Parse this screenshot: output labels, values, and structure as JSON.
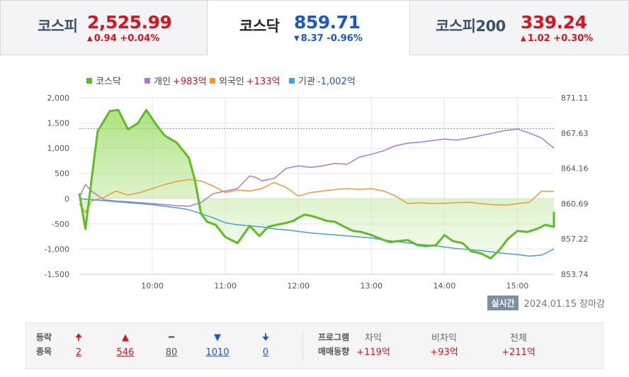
{
  "tabs": [
    {
      "name": "코스피",
      "value": "2,525.99",
      "change": "0.94 +0.04%",
      "dir": "up",
      "active": false
    },
    {
      "name": "코스닥",
      "value": "859.71",
      "change": "8.37 -0.96%",
      "dir": "down",
      "active": true
    },
    {
      "name": "코스피200",
      "value": "339.24",
      "change": "1.02 +0.30%",
      "dir": "up",
      "active": false
    }
  ],
  "legend": [
    {
      "name": "코스닥",
      "amount": "",
      "color": "#5cbf1d"
    },
    {
      "name": "개인",
      "amount": "+983억",
      "color": "#a779d8"
    },
    {
      "name": "외국인",
      "amount": "+133억",
      "color": "#f5962f"
    },
    {
      "name": "기관",
      "amount": "-1,002억",
      "color": "#3ea0e8"
    }
  ],
  "status": {
    "badge": "실시간",
    "date": "2024.01.15 장마감"
  },
  "breadth": {
    "label1": "등락",
    "label2": "종목",
    "items": [
      {
        "icon": "🠉",
        "value": "2",
        "color": "#e0111a",
        "name": "upper-limit"
      },
      {
        "icon": "▲",
        "value": "546",
        "color": "#e0111a",
        "name": "rise"
      },
      {
        "icon": "━",
        "value": "80",
        "color": "#555555",
        "name": "unchanged"
      },
      {
        "icon": "▼",
        "value": "1010",
        "color": "#1a55d6",
        "name": "fall"
      },
      {
        "icon": "🠋",
        "value": "0",
        "color": "#1a55d6",
        "name": "lower-limit"
      }
    ]
  },
  "program": {
    "label1": "프로그램",
    "label2": "매매동향",
    "items": [
      {
        "header": "차익",
        "value": "+119억"
      },
      {
        "header": "비차익",
        "value": "+93억"
      },
      {
        "header": "전체",
        "value": "+211억"
      }
    ]
  },
  "chart_data": {
    "type": "line",
    "x_ticks": [
      "10:00",
      "11:00",
      "12:00",
      "13:00",
      "14:00",
      "15:00"
    ],
    "x_range": [
      "09:00",
      "15:30"
    ],
    "y_left": {
      "ticks": [
        "2,000",
        "1,500",
        "1,000",
        "500",
        "0",
        "-500",
        "-1,000",
        "-1,500"
      ],
      "range": [
        -1500,
        2000
      ]
    },
    "y_right": {
      "ticks": [
        "871.11",
        "867.63",
        "864.16",
        "860.69",
        "857.22",
        "853.74"
      ],
      "range": [
        853.74,
        871.11
      ]
    },
    "reference_line": 868.08,
    "series": [
      {
        "name": "코스닥",
        "axis": "right",
        "color": "#5cbf1d",
        "x": [
          0,
          5,
          15,
          25,
          32,
          40,
          48,
          55,
          63,
          70,
          80,
          90,
          95,
          100,
          105,
          112,
          120,
          130,
          140,
          148,
          155,
          162,
          170,
          176,
          180,
          185,
          190,
          196,
          203,
          210,
          218,
          225,
          232,
          240,
          248,
          255,
          262,
          270,
          278,
          285,
          293,
          300,
          307,
          315,
          322,
          330,
          338,
          345,
          352,
          360,
          368,
          376,
          383,
          390,
          390
        ],
        "y": [
          861.7,
          858.2,
          867.8,
          869.8,
          869.9,
          868.0,
          868.6,
          869.9,
          868.5,
          867.4,
          866.7,
          865.2,
          863.0,
          859.7,
          858.9,
          858.6,
          857.4,
          856.8,
          858.5,
          857.5,
          858.4,
          858.6,
          858.8,
          859.0,
          859.3,
          859.6,
          859.5,
          859.3,
          859.0,
          858.9,
          858.4,
          858.0,
          857.9,
          857.6,
          857.2,
          856.9,
          857.0,
          857.1,
          856.6,
          856.5,
          856.6,
          857.6,
          857.0,
          856.8,
          856.0,
          855.8,
          855.3,
          856.1,
          857.2,
          858.0,
          857.9,
          858.2,
          858.6,
          858.4,
          859.9
        ]
      },
      {
        "name": "개인",
        "axis": "left",
        "color": "#a779d8",
        "x": [
          0,
          5,
          10,
          20,
          30,
          40,
          50,
          60,
          70,
          80,
          90,
          100,
          110,
          120,
          130,
          140,
          145,
          150,
          160,
          170,
          180,
          190,
          200,
          210,
          220,
          230,
          240,
          250,
          260,
          270,
          280,
          290,
          300,
          310,
          320,
          330,
          340,
          350,
          360,
          370,
          380,
          390
        ],
        "y": [
          30,
          280,
          150,
          -20,
          -50,
          -60,
          -80,
          -100,
          -120,
          -140,
          -150,
          -80,
          100,
          150,
          200,
          450,
          420,
          350,
          400,
          600,
          650,
          620,
          650,
          700,
          680,
          820,
          880,
          950,
          1050,
          1100,
          1120,
          1150,
          1180,
          1160,
          1200,
          1250,
          1300,
          1350,
          1380,
          1300,
          1200,
          1000
        ]
      },
      {
        "name": "외국인",
        "axis": "left",
        "color": "#f5962f",
        "x": [
          0,
          5,
          10,
          20,
          30,
          40,
          50,
          60,
          70,
          80,
          90,
          100,
          110,
          120,
          130,
          140,
          150,
          160,
          170,
          180,
          190,
          200,
          210,
          220,
          230,
          240,
          250,
          260,
          270,
          280,
          290,
          300,
          310,
          320,
          330,
          340,
          350,
          360,
          370,
          380,
          390
        ],
        "y": [
          -100,
          -280,
          -50,
          20,
          150,
          70,
          120,
          200,
          280,
          340,
          380,
          350,
          250,
          120,
          170,
          150,
          200,
          320,
          220,
          50,
          120,
          150,
          180,
          200,
          180,
          200,
          150,
          50,
          -100,
          -80,
          -100,
          -90,
          -80,
          -70,
          -100,
          -120,
          -130,
          -100,
          -70,
          150,
          140
        ]
      },
      {
        "name": "기관",
        "axis": "left",
        "color": "#3ea0e8",
        "x": [
          0,
          10,
          20,
          30,
          40,
          50,
          60,
          70,
          80,
          90,
          100,
          110,
          120,
          130,
          140,
          150,
          160,
          170,
          180,
          190,
          200,
          210,
          220,
          230,
          240,
          250,
          260,
          270,
          280,
          290,
          300,
          310,
          320,
          330,
          340,
          350,
          360,
          370,
          380,
          390
        ],
        "y": [
          0,
          -20,
          -40,
          -60,
          -80,
          -100,
          -120,
          -150,
          -180,
          -220,
          -300,
          -380,
          -480,
          -520,
          -540,
          -560,
          -600,
          -620,
          -650,
          -680,
          -700,
          -720,
          -740,
          -760,
          -780,
          -820,
          -850,
          -880,
          -910,
          -930,
          -960,
          -990,
          -1010,
          -1030,
          -1060,
          -1090,
          -1110,
          -1140,
          -1120,
          -1000
        ]
      }
    ]
  }
}
